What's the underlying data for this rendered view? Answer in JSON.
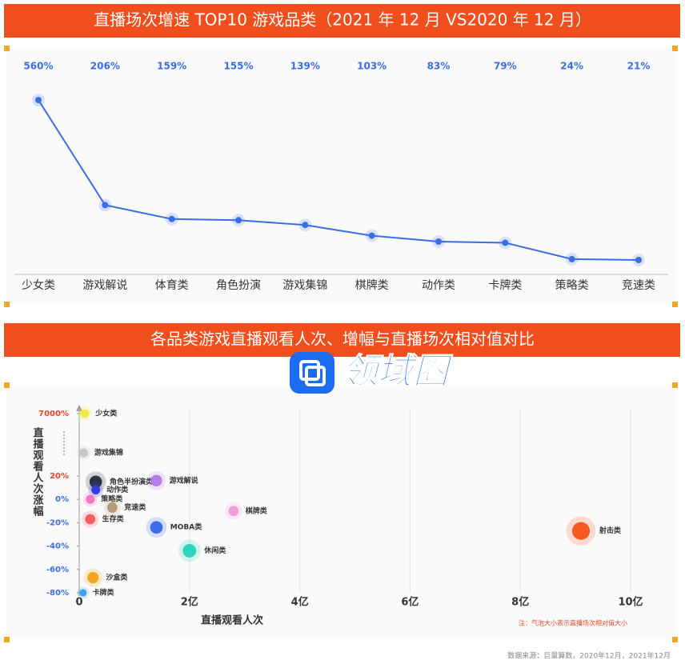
{
  "chart_data": [
    {
      "type": "line",
      "title": "直播场次增速 TOP10 游戏品类（2021 年 12 月 VS2020 年 12 月）",
      "categories": [
        "少女类",
        "游戏解说",
        "体育类",
        "角色扮演",
        "游戏集锦",
        "棋牌类",
        "动作类",
        "卡牌类",
        "策略类",
        "竞速类"
      ],
      "values": [
        560,
        206,
        159,
        155,
        139,
        103,
        83,
        79,
        24,
        21
      ],
      "value_labels": [
        "560%",
        "206%",
        "159%",
        "155%",
        "139%",
        "103%",
        "83%",
        "79%",
        "24%",
        "21%"
      ],
      "color": "#3b6de8"
    },
    {
      "type": "bubble",
      "title": "各品类游戏直播观看人次、增幅与直播场次相对值对比",
      "labels": [
        "少女类",
        "游戏集锦",
        "角色半扮演类",
        "动作类",
        "游戏解说",
        "策略类",
        "竞速类",
        "棋牌类",
        "生存类",
        "MOBA类",
        "射击类",
        "休闲类",
        "沙盒类",
        "卡牌类"
      ],
      "x": [
        0.1,
        0.08,
        0.3,
        0.3,
        1.4,
        0.2,
        0.6,
        2.8,
        0.2,
        1.4,
        9.1,
        2.0,
        0.25,
        0.07
      ],
      "values": [
        7000,
        2600,
        15,
        8,
        16,
        0,
        -7,
        -10,
        -17,
        -24,
        -27,
        -44,
        -67,
        -80
      ],
      "sizes": [
        3,
        3,
        6,
        3,
        5,
        3,
        4,
        4,
        4,
        6,
        12,
        7,
        5,
        2
      ],
      "colors": [
        "#f2e84a",
        "#c8c8c8",
        "#2e3445",
        "#3a3ae0",
        "#b57de8",
        "#f07ac8",
        "#b59a7a",
        "#f0a0d8",
        "#f06060",
        "#3b6de8",
        "#f45a22",
        "#2dd4c0",
        "#f5a623",
        "#3ba0f0"
      ],
      "xlabel": "直播观看人次",
      "ylabel": "直播观看人次涨幅",
      "xlim": [
        0,
        10
      ],
      "xticks": [
        0,
        {
          "value": 2,
          "label": "2亿"
        },
        {
          "value": 4,
          "label": "4亿"
        },
        {
          "value": 6,
          "label": "6亿"
        },
        {
          "value": 8,
          "label": "8亿"
        },
        {
          "value": 10,
          "label": "10亿"
        }
      ],
      "yticks": [
        {
          "value": -80,
          "label": "-80%"
        },
        {
          "value": -60,
          "label": "-60%"
        },
        {
          "value": -40,
          "label": "-40%"
        },
        {
          "value": -20,
          "label": "-20%"
        },
        {
          "value": 0,
          "label": "0%"
        },
        {
          "value": 20,
          "label": "20%"
        },
        {
          "value": 7000,
          "label": "7000%"
        }
      ],
      "axis_break": true,
      "grid": true,
      "note": "注：气泡大小表示直播场次相对值大小"
    }
  ],
  "watermark": "领域圈",
  "source": "数据来源：巨量算数，2020年12月，2021年12月"
}
